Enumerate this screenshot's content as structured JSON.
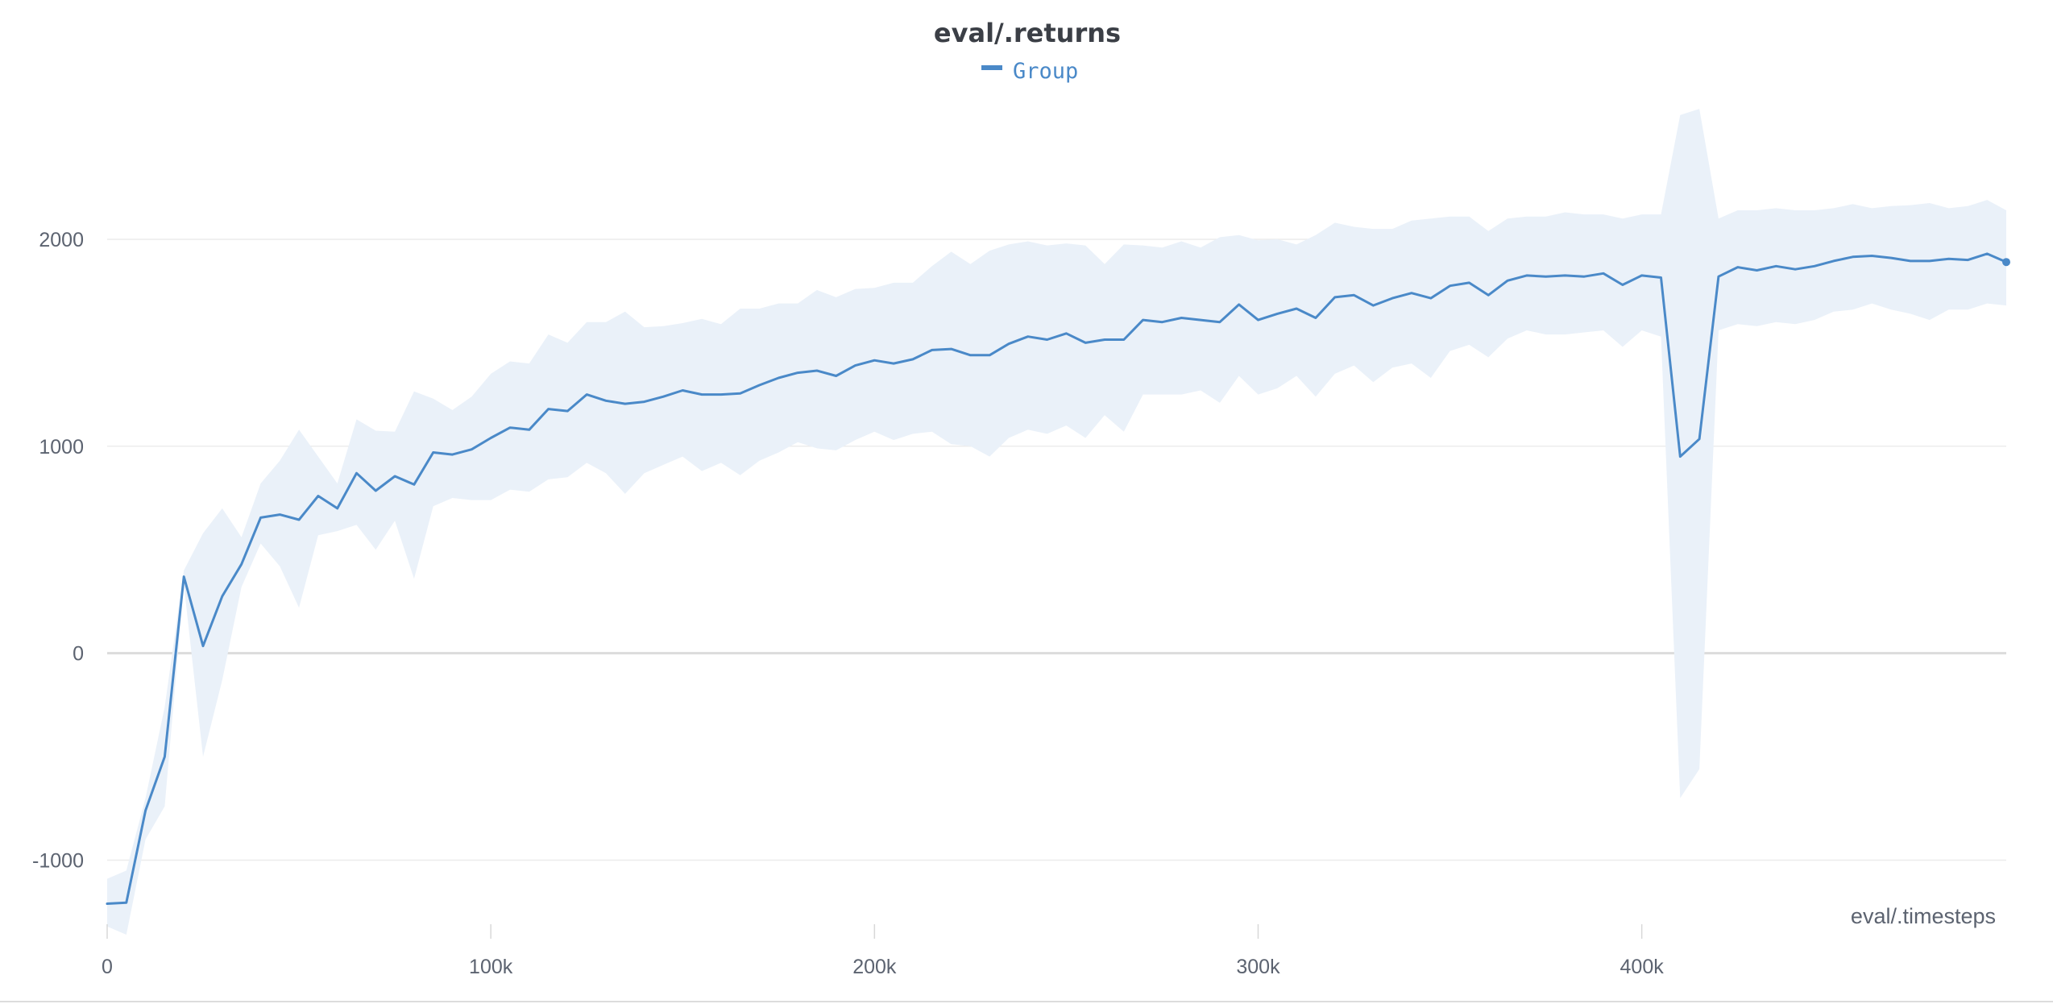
{
  "chart_data": {
    "type": "line",
    "title": "eval/.returns",
    "xlabel": "eval/.timesteps",
    "ylabel": "",
    "xlim": [
      0,
      495000
    ],
    "ylim": [
      -1360,
      2720
    ],
    "x_ticks": [
      0,
      100000,
      200000,
      300000,
      400000
    ],
    "x_tick_labels": [
      "0",
      "100k",
      "200k",
      "300k",
      "400k"
    ],
    "y_ticks": [
      -1000,
      0,
      1000,
      2000
    ],
    "y_tick_labels": [
      "-1000",
      "0",
      "1000",
      "2000"
    ],
    "grid": true,
    "legend": {
      "position": "top-center"
    },
    "colors": {
      "line": "#4a89c8",
      "band": "#eaf1f9",
      "grid": "#ececec",
      "zero_line": "#dcdcdc",
      "text": "#5c6370",
      "title": "#3b3f46"
    },
    "series": [
      {
        "name": "Group",
        "x": [
          0,
          5000,
          10000,
          15000,
          20000,
          25000,
          30000,
          35000,
          40000,
          45000,
          50000,
          55000,
          60000,
          65000,
          70000,
          75000,
          80000,
          85000,
          90000,
          95000,
          100000,
          105000,
          110000,
          115000,
          120000,
          125000,
          130000,
          135000,
          140000,
          145000,
          150000,
          155000,
          160000,
          165000,
          170000,
          175000,
          180000,
          185000,
          190000,
          195000,
          200000,
          205000,
          210000,
          215000,
          220000,
          225000,
          230000,
          235000,
          240000,
          245000,
          250000,
          255000,
          260000,
          265000,
          270000,
          275000,
          280000,
          285000,
          290000,
          295000,
          300000,
          305000,
          310000,
          315000,
          320000,
          325000,
          330000,
          335000,
          340000,
          345000,
          350000,
          355000,
          360000,
          365000,
          370000,
          375000,
          380000,
          385000,
          390000,
          395000,
          400000,
          405000,
          410000,
          415000,
          420000,
          425000,
          430000,
          435000,
          440000,
          445000,
          450000,
          455000,
          460000,
          465000,
          470000,
          475000,
          480000,
          485000,
          490000,
          495000
        ],
        "values": [
          -1210,
          -1205,
          -760,
          -500,
          370,
          35,
          275,
          430,
          655,
          670,
          645,
          760,
          700,
          870,
          785,
          855,
          815,
          970,
          960,
          985,
          1040,
          1090,
          1080,
          1180,
          1170,
          1250,
          1220,
          1205,
          1215,
          1240,
          1270,
          1250,
          1250,
          1255,
          1295,
          1330,
          1355,
          1365,
          1340,
          1390,
          1415,
          1400,
          1420,
          1465,
          1470,
          1440,
          1440,
          1495,
          1530,
          1515,
          1545,
          1500,
          1515,
          1515,
          1610,
          1600,
          1620,
          1610,
          1600,
          1685,
          1610,
          1640,
          1665,
          1620,
          1720,
          1730,
          1680,
          1715,
          1740,
          1715,
          1775,
          1790,
          1730,
          1800,
          1825,
          1820,
          1825,
          1820,
          1835,
          1780,
          1825,
          1815,
          950,
          1035,
          1820,
          1865,
          1850,
          1870,
          1855,
          1870,
          1895,
          1915,
          1920,
          1910,
          1895,
          1895,
          1905,
          1900,
          1930,
          1890
        ],
        "band_upper": [
          -1090,
          -1050,
          -700,
          -260,
          400,
          580,
          700,
          560,
          820,
          930,
          1080,
          950,
          820,
          1130,
          1075,
          1070,
          1265,
          1230,
          1175,
          1240,
          1350,
          1410,
          1400,
          1540,
          1500,
          1600,
          1600,
          1650,
          1575,
          1580,
          1595,
          1615,
          1590,
          1665,
          1665,
          1690,
          1690,
          1755,
          1720,
          1760,
          1765,
          1790,
          1790,
          1870,
          1940,
          1880,
          1945,
          1975,
          1990,
          1970,
          1980,
          1970,
          1880,
          1975,
          1970,
          1960,
          1990,
          1960,
          2010,
          2020,
          1995,
          2000,
          1975,
          2020,
          2080,
          2060,
          2050,
          2050,
          2090,
          2100,
          2110,
          2110,
          2040,
          2100,
          2110,
          2110,
          2130,
          2120,
          2120,
          2100,
          2120,
          2120,
          2600,
          2630,
          2100,
          2140,
          2140,
          2150,
          2140,
          2140,
          2150,
          2170,
          2150,
          2160,
          2165,
          2175,
          2150,
          2160,
          2190,
          2140
        ],
        "band_lower": [
          -1320,
          -1360,
          -900,
          -740,
          330,
          -500,
          -130,
          320,
          530,
          420,
          220,
          570,
          590,
          620,
          500,
          640,
          360,
          710,
          750,
          740,
          740,
          790,
          780,
          840,
          850,
          920,
          870,
          770,
          870,
          910,
          950,
          880,
          920,
          860,
          930,
          970,
          1020,
          990,
          980,
          1030,
          1070,
          1030,
          1060,
          1070,
          1010,
          1000,
          950,
          1040,
          1080,
          1060,
          1100,
          1040,
          1150,
          1070,
          1250,
          1250,
          1250,
          1270,
          1210,
          1340,
          1250,
          1280,
          1340,
          1240,
          1350,
          1390,
          1310,
          1380,
          1400,
          1330,
          1460,
          1490,
          1430,
          1520,
          1560,
          1540,
          1540,
          1550,
          1560,
          1480,
          1560,
          1530,
          -700,
          -560,
          1560,
          1590,
          1580,
          1600,
          1590,
          1610,
          1650,
          1660,
          1690,
          1660,
          1640,
          1610,
          1660,
          1660,
          1690,
          1680
        ]
      }
    ]
  }
}
